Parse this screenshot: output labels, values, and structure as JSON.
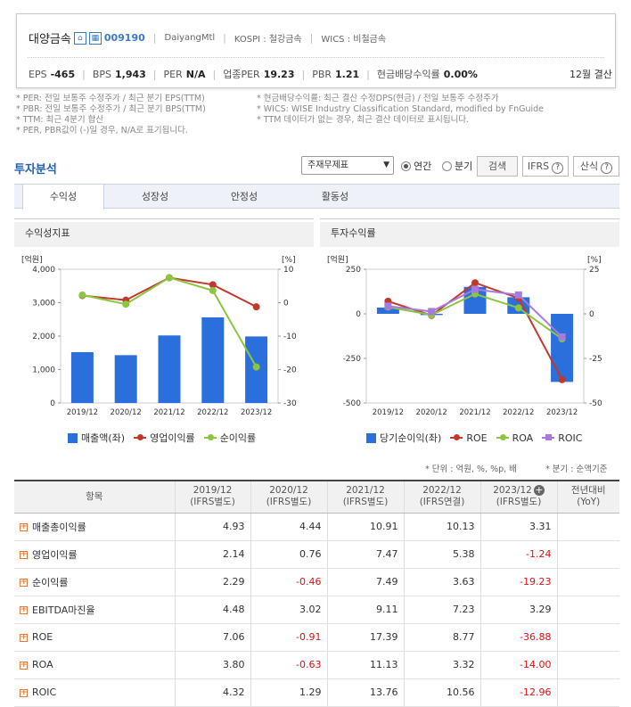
{
  "company": {
    "name": "대양금속",
    "code": "009190",
    "english": "DaiyangMtl",
    "market": "KOSPI : 철강금속",
    "wics": "WICS : 비철금속"
  },
  "metrics": [
    {
      "label": "EPS",
      "value": "-465"
    },
    {
      "label": "BPS",
      "value": "1,943"
    },
    {
      "label": "PER",
      "value": "N/A"
    },
    {
      "label": "업종PER",
      "value": "19.23"
    },
    {
      "label": "PBR",
      "value": "1.21"
    },
    {
      "label": "현금배당수익률",
      "value": "0.00%"
    }
  ],
  "fiscal": "12월 결산",
  "notes_left": [
    "* PER: 전일 보통주 수정주가 / 최근 분기 EPS(TTM)",
    "* PBR: 전일 보통주 수정주가 / 최근 분기 BPS(TTM)",
    "* TTM: 최근 4분기 합산",
    "* PER, PBR값이 (-)일 경우, N/A로 표기됩니다."
  ],
  "notes_right": [
    "* 현금배당수익률: 최근 결산 수정DPS(현금) / 전일 보통주 수정주가",
    "* WICS: WISE Industry Classification Standard, modified by FnGuide",
    "* TTM 데이터가 없는 경우, 최근 결산 데이터로 표시됩니다."
  ],
  "section_title": "투자분석",
  "controls": {
    "select": "주재무제표",
    "radio_annual": "연간",
    "radio_quarter": "분기",
    "search": "검색",
    "ifrs": "IFRS",
    "formula": "산식"
  },
  "tabs": [
    "수익성",
    "성장성",
    "안정성",
    "활동성"
  ],
  "chart_data": [
    {
      "type": "bar",
      "title": "수익성지표",
      "categories": [
        "2019/12",
        "2020/12",
        "2021/12",
        "2022/12",
        "2023/12"
      ],
      "left_axis": {
        "unit": "[억원]",
        "ticks": [
          "0",
          "1,000",
          "2,000",
          "3,000",
          "4,000"
        ],
        "range": [
          0,
          4000
        ]
      },
      "right_axis": {
        "unit": "[%]",
        "ticks": [
          "-30",
          "-20",
          "-10",
          "0",
          "10"
        ],
        "range": [
          -30,
          10
        ]
      },
      "series": [
        {
          "name": "매출액(좌)",
          "kind": "bar",
          "axis": "left",
          "color": "#2a6fdb",
          "values": [
            1520,
            1430,
            2020,
            2560,
            1990
          ]
        },
        {
          "name": "영업이익률",
          "kind": "line",
          "axis": "right",
          "color": "#c0392b",
          "values": [
            2.14,
            0.76,
            7.47,
            5.38,
            -1.24
          ]
        },
        {
          "name": "순이익률",
          "kind": "line",
          "axis": "right",
          "color": "#8cc63f",
          "values": [
            2.29,
            -0.46,
            7.49,
            3.63,
            -19.23
          ]
        }
      ]
    },
    {
      "type": "bar",
      "title": "투자수익률",
      "categories": [
        "2019/12",
        "2020/12",
        "2021/12",
        "2022/12",
        "2023/12"
      ],
      "left_axis": {
        "unit": "[억원]",
        "ticks": [
          "-500",
          "-250",
          "0",
          "250"
        ],
        "range": [
          -500,
          250
        ]
      },
      "right_axis": {
        "unit": "[%]",
        "ticks": [
          "-50",
          "-25",
          "0",
          "25"
        ],
        "range": [
          -50,
          25
        ]
      },
      "series": [
        {
          "name": "당기순이익(좌)",
          "kind": "bar",
          "axis": "left",
          "color": "#2a6fdb",
          "values": [
            35,
            -7,
            151,
            93,
            -382
          ]
        },
        {
          "name": "ROE",
          "kind": "line",
          "axis": "right",
          "color": "#c0392b",
          "values": [
            7.06,
            -0.91,
            17.39,
            8.77,
            -36.88
          ]
        },
        {
          "name": "ROA",
          "kind": "line",
          "axis": "right",
          "color": "#8cc63f",
          "values": [
            3.8,
            -0.63,
            11.13,
            3.32,
            -14.0
          ]
        },
        {
          "name": "ROIC",
          "kind": "line",
          "axis": "right",
          "color": "#a77bdc",
          "values": [
            4.32,
            1.29,
            13.76,
            10.56,
            -12.96
          ]
        }
      ]
    }
  ],
  "unit_left": "* 단위 : 억원, %, %p, 배",
  "unit_right": "* 분기 : 순액기준",
  "table": {
    "headers": [
      "항목",
      "2019/12\n(IFRS별도)",
      "2020/12\n(IFRS별도)",
      "2021/12\n(IFRS별도)",
      "2022/12\n(IFRS연결)",
      "2023/12\n(IFRS별도)",
      "전년대비\n(YoY)"
    ],
    "rows": [
      {
        "label": "매출총이익률",
        "values": [
          "4.93",
          "4.44",
          "10.91",
          "10.13",
          "3.31",
          ""
        ]
      },
      {
        "label": "영업이익률",
        "values": [
          "2.14",
          "0.76",
          "7.47",
          "5.38",
          "-1.24",
          ""
        ]
      },
      {
        "label": "순이익률",
        "values": [
          "2.29",
          "-0.46",
          "7.49",
          "3.63",
          "-19.23",
          ""
        ]
      },
      {
        "label": "EBITDA마진율",
        "values": [
          "4.48",
          "3.02",
          "9.11",
          "7.23",
          "3.29",
          ""
        ]
      },
      {
        "label": "ROE",
        "values": [
          "7.06",
          "-0.91",
          "17.39",
          "8.77",
          "-36.88",
          ""
        ]
      },
      {
        "label": "ROA",
        "values": [
          "3.80",
          "-0.63",
          "11.13",
          "3.32",
          "-14.00",
          ""
        ]
      },
      {
        "label": "ROIC",
        "values": [
          "4.32",
          "1.29",
          "13.76",
          "10.56",
          "-12.96",
          ""
        ]
      }
    ]
  }
}
